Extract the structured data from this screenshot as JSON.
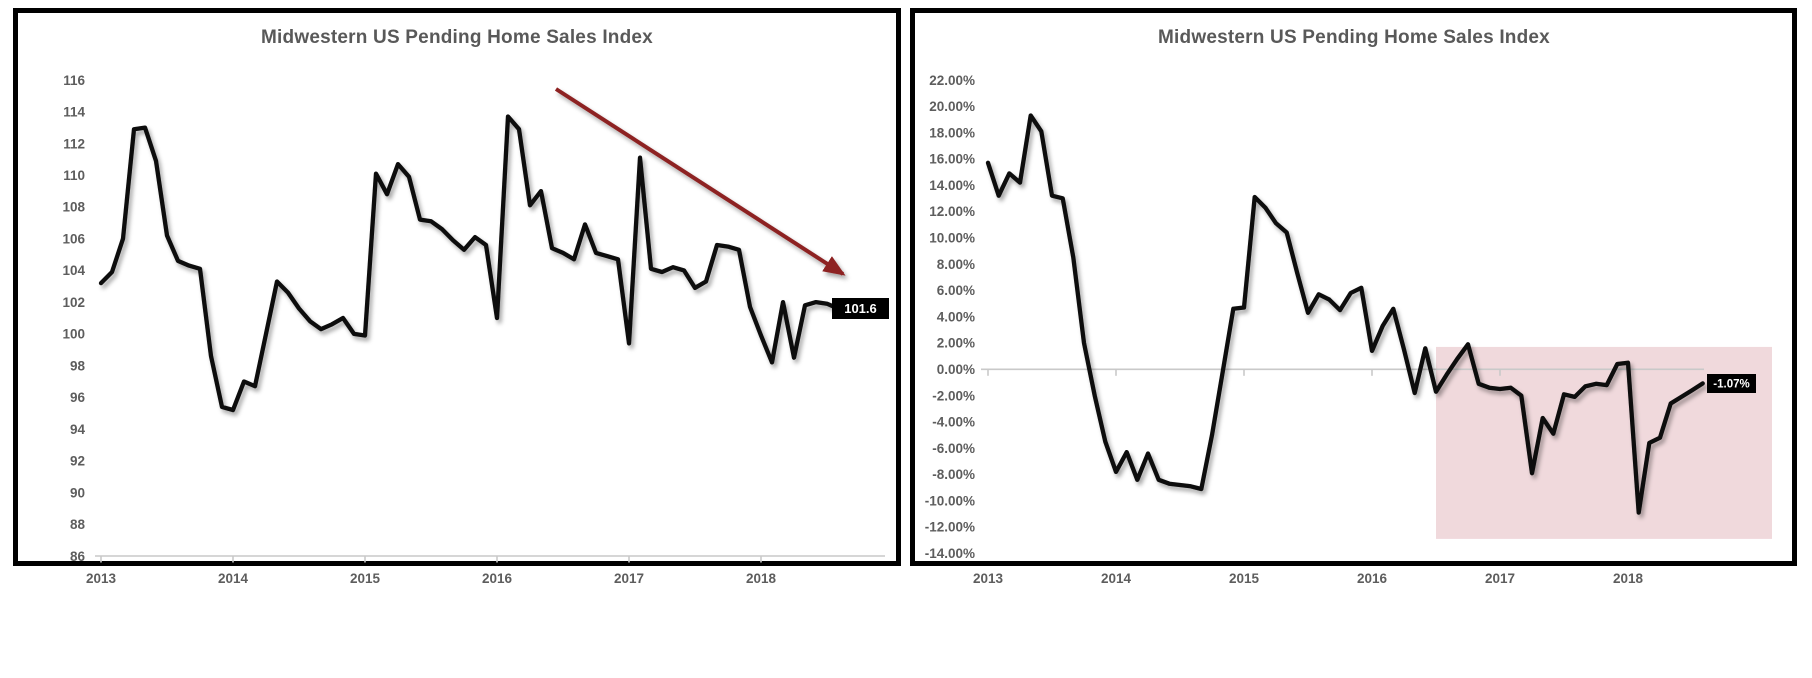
{
  "page": {
    "background": "#ffffff",
    "panel_border_color": "#000000",
    "title_color": "#595959",
    "tick_label_color": "#5d5d5d",
    "axis_line_color": "#c9c9c9"
  },
  "chart_data": [
    {
      "type": "line",
      "position": "left-panel",
      "title": "Midwestern US Pending Home Sales Index",
      "x_start": "2013-01",
      "x_end": "2018-08",
      "frequency": "monthly",
      "xtick_labels": [
        "2013",
        "2014",
        "2015",
        "2016",
        "2017",
        "2018"
      ],
      "ytick_labels": [
        "116",
        "114",
        "112",
        "110",
        "108",
        "106",
        "104",
        "102",
        "100",
        "98",
        "96",
        "94",
        "92",
        "90",
        "88",
        "86"
      ],
      "ylim": [
        86,
        116
      ],
      "grid": false,
      "legend": "none",
      "series_color": "#0a0a0a",
      "values": [
        103.2,
        103.9,
        106.0,
        112.9,
        113.0,
        110.9,
        106.2,
        104.6,
        104.3,
        104.1,
        98.6,
        95.4,
        95.2,
        97.0,
        96.7,
        100.0,
        103.3,
        102.6,
        101.6,
        100.8,
        100.3,
        100.6,
        101.0,
        100.0,
        99.9,
        110.1,
        108.8,
        110.7,
        109.9,
        107.2,
        107.1,
        106.6,
        105.9,
        105.3,
        106.1,
        105.6,
        101.0,
        113.7,
        112.9,
        108.1,
        109.0,
        105.4,
        105.1,
        104.7,
        106.9,
        105.1,
        104.9,
        104.7,
        99.4,
        111.1,
        104.1,
        103.9,
        104.2,
        104.0,
        102.9,
        103.3,
        105.6,
        105.5,
        105.3,
        101.7,
        99.9,
        98.2,
        102.0,
        98.5,
        101.8,
        102.0,
        101.9,
        101.6
      ],
      "last_value_label": "101.6",
      "callout": {
        "bg": "#000000",
        "text_color": "#ffffff"
      },
      "annotations": {
        "trend_arrow": {
          "direction": "down-right",
          "color": "#8d2121"
        }
      }
    },
    {
      "type": "line",
      "position": "right-panel",
      "title": "Midwestern US Pending Home Sales Index",
      "x_start": "2013-01",
      "x_end": "2018-08",
      "frequency": "monthly",
      "xtick_labels": [
        "2013",
        "2014",
        "2015",
        "2016",
        "2017",
        "2018"
      ],
      "ytick_labels": [
        "22.00%",
        "20.00%",
        "18.00%",
        "16.00%",
        "14.00%",
        "12.00%",
        "10.00%",
        "8.00%",
        "6.00%",
        "4.00%",
        "2.00%",
        "0.00%",
        "-2.00%",
        "-4.00%",
        "-6.00%",
        "-8.00%",
        "-10.00%",
        "-12.00%",
        "-14.00%"
      ],
      "ylim": [
        -14,
        22
      ],
      "unit": "percent-yoy",
      "grid": false,
      "legend": "none",
      "series_color": "#0a0a0a",
      "values": [
        15.7,
        13.2,
        14.9,
        14.2,
        19.3,
        18.1,
        13.2,
        13.0,
        8.5,
        2.0,
        -2.0,
        -5.5,
        -7.8,
        -6.3,
        -8.4,
        -6.4,
        -8.4,
        -8.7,
        -8.8,
        -8.9,
        -9.1,
        -5.0,
        -0.2,
        4.6,
        4.7,
        13.1,
        12.3,
        11.1,
        10.4,
        7.3,
        4.3,
        5.7,
        5.3,
        4.5,
        5.8,
        6.2,
        1.4,
        3.3,
        4.6,
        1.5,
        -1.8,
        1.6,
        -1.7,
        -0.4,
        0.8,
        1.9,
        -1.1,
        -1.4,
        -1.5,
        -1.4,
        -2.0,
        -7.9,
        -3.7,
        -4.9,
        -1.9,
        -2.1,
        -1.3,
        -1.1,
        -1.2,
        0.4,
        0.5,
        -10.9,
        -5.6,
        -5.2,
        -2.6,
        -2.1,
        -1.6,
        -1.07
      ],
      "last_value_label": "-1.07%",
      "callout": {
        "bg": "#000000",
        "text_color": "#ffffff"
      },
      "shaded_region": {
        "from": "2016-07",
        "to": "right-edge-of-plot",
        "top_pct": 1.7,
        "bottom_pct": -12.9,
        "color": "#f0d9dc"
      }
    }
  ]
}
